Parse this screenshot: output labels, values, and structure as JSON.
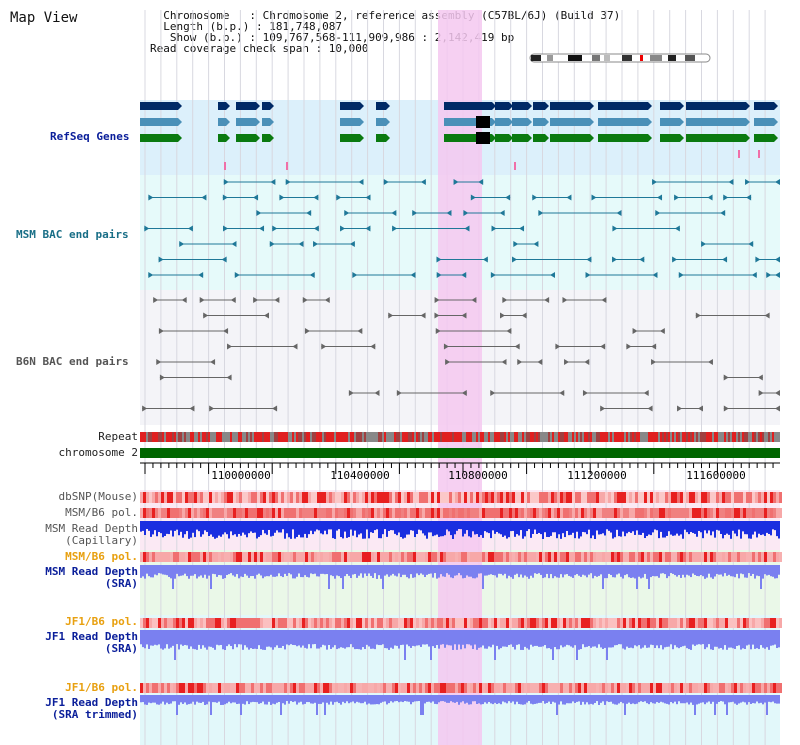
{
  "view": {
    "title": "Map View",
    "info_lines": [
      "  Chromosome   : Chromosome 2, reference assembly (C57BL/6J) (Build 37)",
      "  Length (b.p.) : 181,748,087",
      "   Show (b.p.) : 109,767,568-111,909,986 : 2,142,419 bp",
      "Read coverage check span : 10,000"
    ]
  },
  "tracks": {
    "refseq": "RefSeq Genes",
    "msm_bac": "MSM BAC end pairs",
    "b6n_bac": "B6N BAC end pairs",
    "repeat": "Repeat",
    "chromosome": "chromosome 2",
    "dbsnp": "dbSNP(Mouse)",
    "msm_b6_pol_1": "MSM/B6 pol.",
    "msm_depth_cap_1": "MSM Read Depth",
    "msm_depth_cap_2": "(Capillary)",
    "msm_b6_pol_2": "MSM/B6 pol.",
    "msm_depth_sra_1": "MSM Read Depth",
    "msm_depth_sra_2": "(SRA)",
    "jf1_b6_pol_1": "JF1/B6 pol.",
    "jf1_depth_sra_1": "JF1 Read Depth",
    "jf1_depth_sra_2": "(SRA)",
    "jf1_b6_pol_2": "JF1/B6 pol.",
    "jf1_depth_trim_1": "JF1 Read Depth",
    "jf1_depth_trim_2": "(SRA trimmed)"
  },
  "axis": {
    "ticks": [
      "110000000",
      "110400000",
      "110800000",
      "111200000",
      "111600000"
    ]
  },
  "colors": {
    "refseq_dark": "#002a66",
    "refseq_mid": "#4a90b8",
    "refseq_green": "#0a7a10",
    "msm_bac": "#1f7898",
    "b6n_bac": "#666666",
    "highlight": "#f5c8f0",
    "chromosome": "#006600",
    "depth_blue": "#1a2ee0",
    "depth_violet": "#7a80f0"
  }
}
